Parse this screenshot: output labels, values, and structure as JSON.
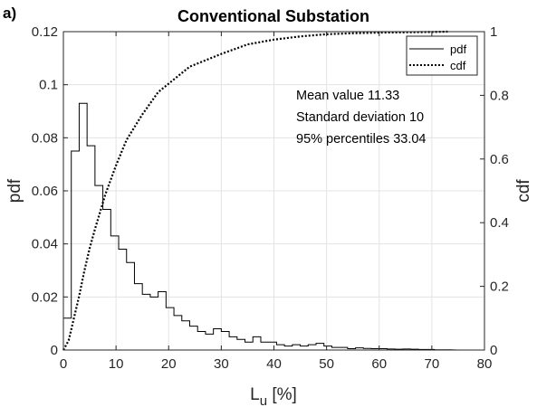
{
  "chart_data": {
    "type": "histogram+line",
    "panel_label": "a)",
    "title": "Conventional Substation",
    "xlabel": {
      "main": "L",
      "sub": "u",
      "rest": " [%]"
    },
    "ylabel_left": "pdf",
    "ylabel_right": "cdf",
    "xlim": [
      0,
      80
    ],
    "ylim_left": [
      0,
      0.12
    ],
    "ylim_right": [
      0,
      1
    ],
    "xticks": [
      0,
      10,
      20,
      30,
      40,
      50,
      60,
      70,
      80
    ],
    "yticks_left": [
      0,
      0.02,
      0.04,
      0.06,
      0.08,
      0.1,
      0.12
    ],
    "yticks_right": [
      0,
      0.2,
      0.4,
      0.6,
      0.8,
      1
    ],
    "grid": true,
    "legend_position": "top-right",
    "series": [
      {
        "name": "pdf",
        "style": "solid",
        "axis": "left",
        "bin_edges": [
          0,
          1.5,
          3,
          4.5,
          6,
          7.5,
          9,
          10.5,
          12,
          13.5,
          15,
          16.5,
          18,
          19.5,
          21,
          22.5,
          24,
          25.5,
          27,
          28.5,
          30,
          31.5,
          33,
          34.5,
          36,
          37.5,
          39,
          40.5,
          42,
          43.5,
          45,
          46.5,
          48,
          49.5,
          51,
          52.5,
          54,
          55.5,
          57,
          58.5,
          60,
          61.5,
          63,
          64.5,
          66,
          67.5,
          69,
          70.5,
          72,
          73.5
        ],
        "values": [
          0.012,
          0.075,
          0.093,
          0.077,
          0.062,
          0.053,
          0.043,
          0.038,
          0.033,
          0.025,
          0.021,
          0.02,
          0.022,
          0.016,
          0.013,
          0.011,
          0.009,
          0.007,
          0.006,
          0.008,
          0.007,
          0.005,
          0.004,
          0.003,
          0.005,
          0.003,
          0.003,
          0.002,
          0.0015,
          0.002,
          0.0015,
          0.002,
          0.0025,
          0.0015,
          0.001,
          0.001,
          0.0005,
          0.0008,
          0.0006,
          0.0005,
          0.0005,
          0.0004,
          0.0003,
          0.0004,
          0.0003,
          0.0002,
          0.0002,
          0.0001,
          0.0001
        ]
      },
      {
        "name": "cdf",
        "style": "dotted",
        "axis": "right",
        "x": [
          0,
          1,
          2,
          3,
          4,
          5,
          6,
          8,
          10,
          12,
          15,
          18,
          21,
          24,
          27,
          30,
          35,
          40,
          45,
          50,
          55,
          60,
          65,
          70,
          73
        ],
        "values": [
          0,
          0.03,
          0.1,
          0.17,
          0.25,
          0.32,
          0.38,
          0.49,
          0.58,
          0.66,
          0.74,
          0.81,
          0.85,
          0.89,
          0.91,
          0.93,
          0.96,
          0.975,
          0.985,
          0.992,
          0.995,
          0.997,
          0.998,
          0.999,
          1.0
        ]
      }
    ],
    "annotations": [
      "Mean value  11.33",
      "Standard deviation  10",
      "95% percentiles 33.04"
    ]
  }
}
